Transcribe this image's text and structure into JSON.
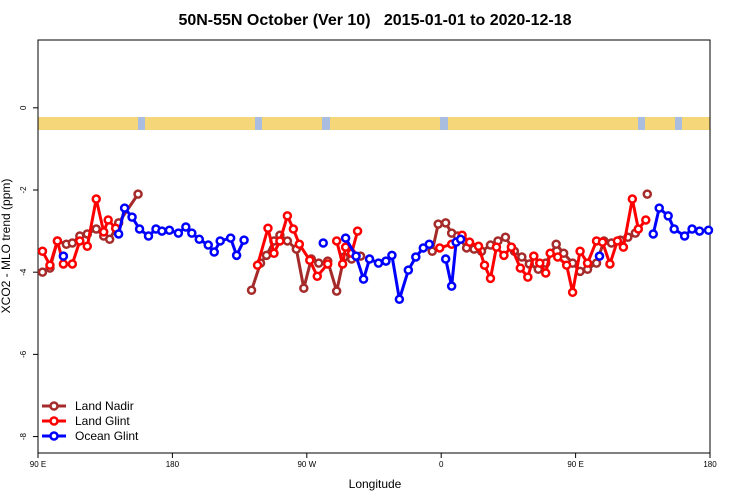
{
  "chart_data": {
    "type": "line",
    "title": "50N-55N October (Ver 10)   2015-01-01 to 2020-12-18",
    "xlabel": "Longitude",
    "ylabel": "XCO2 - MLO trend (ppm)",
    "xlim": [
      90,
      540
    ],
    "ylim": [
      -8.4,
      1.65
    ],
    "xticks": [
      {
        "value": 90,
        "label": "90 E"
      },
      {
        "value": 180,
        "label": "180"
      },
      {
        "value": 270,
        "label": "90 W"
      },
      {
        "value": 360,
        "label": "0"
      },
      {
        "value": 450,
        "label": "90 E"
      },
      {
        "value": 540,
        "label": "180"
      }
    ],
    "yticks": [
      0,
      -2,
      -4,
      -6,
      -8
    ],
    "legend": "bottom-left",
    "series": [
      {
        "name": "Land Nadir",
        "color": "#a52a2a",
        "x": [
          93,
          98,
          103,
          109,
          113,
          118,
          123,
          129,
          134,
          138,
          144,
          157,
          null,
          233,
          239,
          243,
          248,
          252,
          257,
          263,
          268,
          273,
          278,
          284,
          290,
          295,
          300,
          306,
          null,
          354,
          358,
          363,
          367,
          371,
          377,
          382,
          387,
          393,
          398,
          403,
          409,
          414,
          419,
          425,
          430,
          437,
          442,
          448,
          453,
          458,
          464,
          469,
          474,
          480,
          485,
          490,
          null,
          498
        ],
        "values": [
          -4.0,
          -3.9,
          -3.24,
          -3.32,
          -3.29,
          -3.12,
          -3.07,
          -2.95,
          -3.12,
          -3.2,
          -2.8,
          -2.1,
          null,
          -4.44,
          -3.78,
          -3.59,
          -3.24,
          -3.1,
          -3.24,
          -3.44,
          -4.39,
          -3.68,
          -3.78,
          -3.73,
          -4.46,
          -3.63,
          -3.68,
          -3.61,
          null,
          -3.49,
          -2.83,
          -2.8,
          -3.05,
          -3.12,
          -3.41,
          -3.44,
          -3.49,
          -3.34,
          -3.24,
          -3.15,
          -3.49,
          -3.63,
          -3.8,
          -3.93,
          -3.78,
          -3.32,
          -3.54,
          -3.78,
          -3.98,
          -3.93,
          -3.78,
          -3.24,
          -3.29,
          -3.22,
          -3.15,
          -3.05,
          null,
          -2.1
        ]
      },
      {
        "name": "Land Glint",
        "color": "#ff0000",
        "x": [
          93,
          98,
          103,
          107,
          113,
          118,
          123,
          129,
          134,
          137,
          142,
          null,
          237,
          244,
          248,
          252,
          257,
          261,
          265,
          272,
          277,
          284,
          null,
          290,
          294,
          296,
          300,
          304,
          null,
          359,
          367,
          374,
          379,
          385,
          389,
          393,
          397,
          402,
          407,
          413,
          418,
          422,
          426,
          430,
          433,
          438,
          444,
          448,
          453,
          458,
          464,
          468,
          473,
          478,
          482,
          488,
          492,
          497
        ],
        "values": [
          -3.49,
          -3.83,
          -3.24,
          -3.8,
          -3.8,
          -3.24,
          -3.37,
          -2.22,
          -3.02,
          -2.73,
          -2.93,
          null,
          -3.83,
          -2.93,
          -3.54,
          -3.24,
          -2.63,
          -2.95,
          -3.32,
          -3.71,
          -4.1,
          -3.8,
          null,
          -3.24,
          -3.8,
          -3.39,
          -3.54,
          -3.0,
          null,
          -3.41,
          -3.32,
          -3.1,
          -3.27,
          -3.37,
          -3.83,
          -4.15,
          -3.39,
          -3.59,
          -3.39,
          -3.9,
          -4.12,
          -3.61,
          -3.78,
          -4.02,
          -3.54,
          -3.63,
          -3.83,
          -4.49,
          -3.49,
          -3.78,
          -3.24,
          -3.27,
          -3.8,
          -3.24,
          -3.39,
          -2.22,
          -2.95,
          -2.73
        ]
      },
      {
        "name": "Ocean Glint",
        "color": "#0000ff",
        "x": [
          107,
          null,
          144,
          148,
          153,
          158,
          164,
          169,
          173,
          178,
          184,
          189,
          193,
          198,
          204,
          208,
          212,
          219,
          223,
          228,
          null,
          281,
          null,
          296,
          303,
          308,
          312,
          318,
          323,
          327,
          332,
          338,
          343,
          348,
          352,
          null,
          363,
          367,
          370,
          373,
          null,
          466,
          null,
          502,
          506,
          512,
          516,
          523,
          528,
          533,
          539
        ],
        "values": [
          -3.61,
          null,
          -3.07,
          -2.44,
          -2.66,
          -2.95,
          -3.12,
          -2.95,
          -3.0,
          -2.98,
          -3.05,
          -2.9,
          -3.05,
          -3.2,
          -3.34,
          -3.51,
          -3.24,
          -3.17,
          -3.59,
          -3.22,
          null,
          -3.29,
          null,
          -3.17,
          -3.61,
          -4.17,
          -3.68,
          -3.78,
          -3.73,
          -3.59,
          -4.66,
          -3.95,
          -3.63,
          -3.41,
          -3.32,
          null,
          -3.68,
          -4.34,
          -3.27,
          -3.2,
          null,
          -3.61,
          null,
          -3.07,
          -2.44,
          -2.63,
          -2.95,
          -3.12,
          -2.95,
          -3.0,
          -2.98
        ]
      }
    ]
  }
}
